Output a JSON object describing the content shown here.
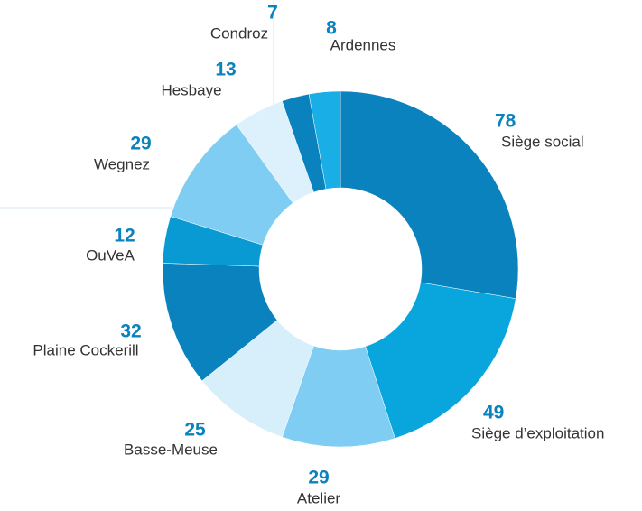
{
  "chart_data": {
    "type": "donut",
    "categories": [
      "Siège social",
      "Siège d’exploitation",
      "Atelier",
      "Basse-Meuse",
      "Plaine Cockerill",
      "OuVeA",
      "Wegnez",
      "Hesbaye",
      "Condroz",
      "Ardennes"
    ],
    "values": [
      78,
      49,
      29,
      25,
      32,
      12,
      29,
      13,
      7,
      8
    ],
    "colors": [
      "#0a82bd",
      "#08a6dc",
      "#7fcdf3",
      "#d6effb",
      "#0a82bd",
      "#0a9ad3",
      "#7fcdf3",
      "#dcf1fc",
      "#0a82bd",
      "#1aaee6"
    ]
  }
}
